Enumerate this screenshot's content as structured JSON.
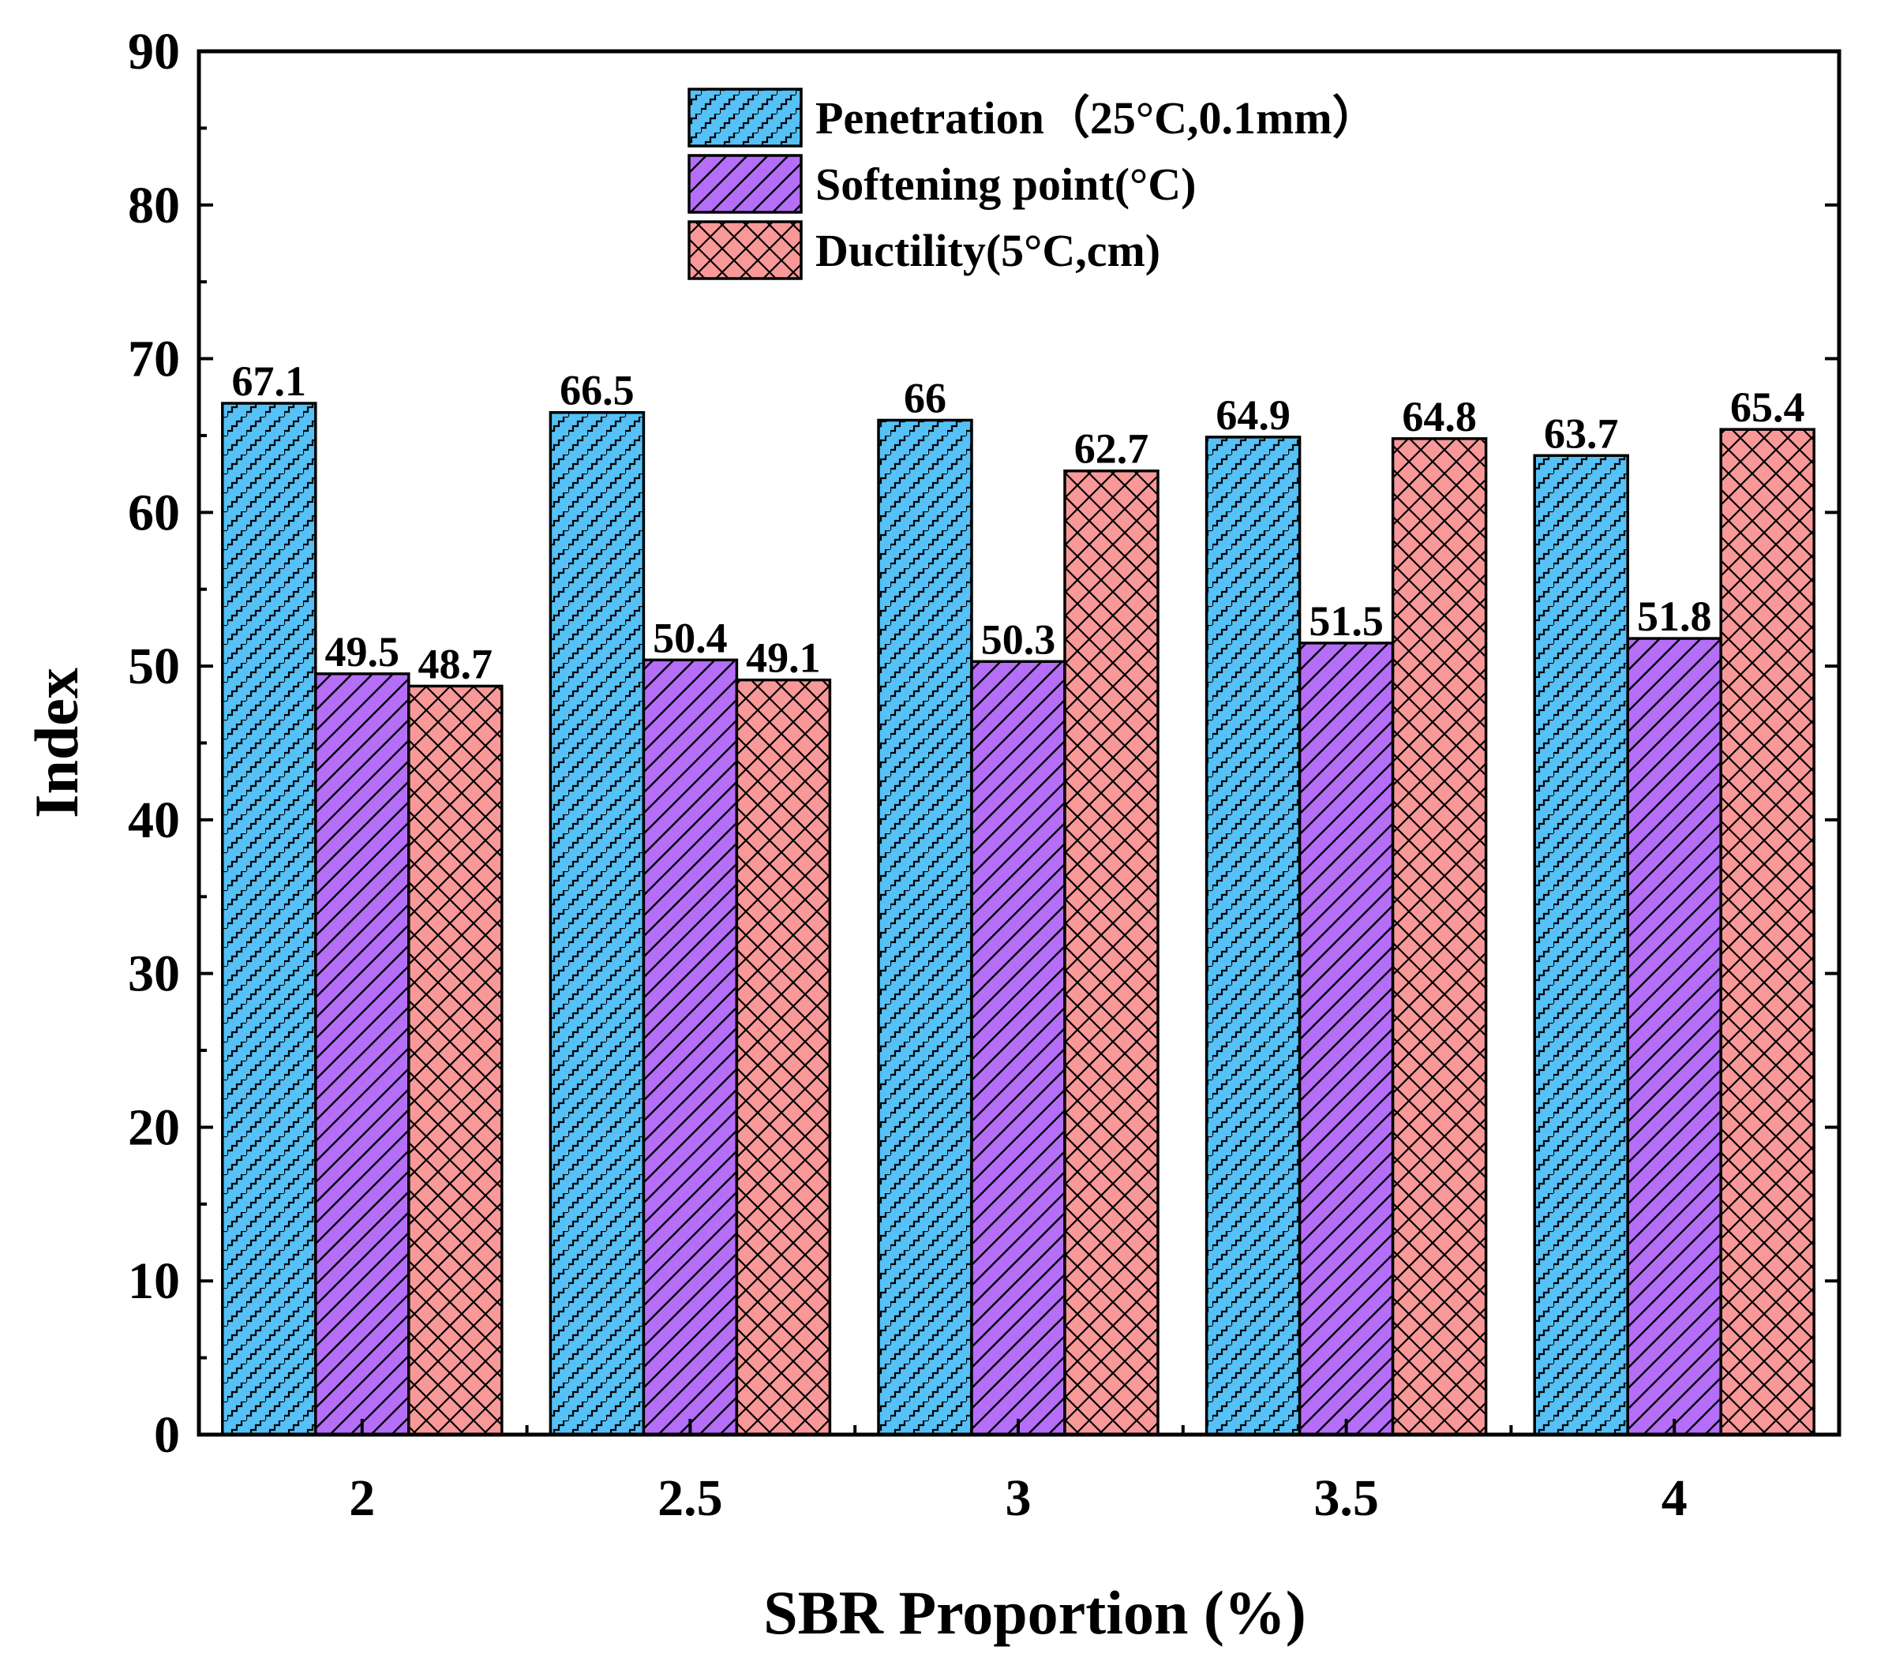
{
  "chart_data": {
    "type": "bar",
    "title": "",
    "xlabel": "SBR Proportion (%)",
    "ylabel": "Index",
    "categories": [
      "2",
      "2.5",
      "3",
      "3.5",
      "4"
    ],
    "ylim": [
      0,
      90
    ],
    "yticks": [
      "0",
      "10",
      "20",
      "30",
      "40",
      "50",
      "60",
      "70",
      "80",
      "90"
    ],
    "grid": false,
    "legend_position": "top-center",
    "series": [
      {
        "name": "Penetration（25°C,0.1mm）",
        "color": "#56c1f7",
        "pattern": "zigzag-diagonal",
        "values": [
          67.1,
          66.5,
          66,
          64.9,
          63.7
        ],
        "labels": [
          "67.1",
          "66.5",
          "66",
          "64.9",
          "63.7"
        ]
      },
      {
        "name": "Softening point(°C)",
        "color": "#b56ef7",
        "pattern": "diagonal-lines",
        "values": [
          49.5,
          50.4,
          50.3,
          51.5,
          51.8
        ],
        "labels": [
          "49.5",
          "50.4",
          "50.3",
          "51.5",
          "51.8"
        ]
      },
      {
        "name": "Ductility(5°C,cm)",
        "color": "#f89898",
        "pattern": "crosshatch",
        "values": [
          48.7,
          49.1,
          62.7,
          64.8,
          65.4
        ],
        "labels": [
          "48.7",
          "49.1",
          "62.7",
          "64.8",
          "65.4"
        ]
      }
    ]
  }
}
